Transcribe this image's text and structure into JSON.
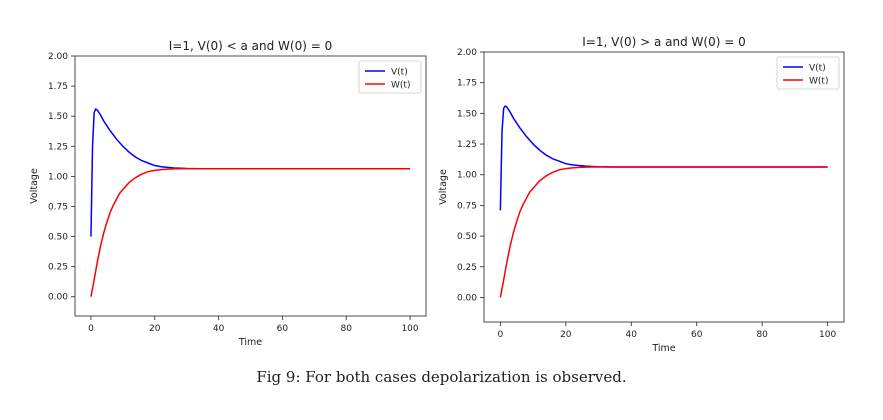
{
  "chart_data": [
    {
      "type": "line",
      "title": "I=1, V(0) < a and W(0) = 0",
      "xlabel": "Time",
      "ylabel": "Voltage",
      "xlim": [
        -5,
        105
      ],
      "ylim": [
        -0.16,
        2.0
      ],
      "xticks": [
        0,
        20,
        40,
        60,
        80,
        100
      ],
      "xtick_labels": [
        "0",
        "20",
        "40",
        "60",
        "80",
        "100"
      ],
      "yticks": [
        0.0,
        0.25,
        0.5,
        0.75,
        1.0,
        1.25,
        1.5,
        1.75,
        2.0
      ],
      "ytick_labels": [
        "0.00",
        "0.25",
        "0.50",
        "0.75",
        "1.00",
        "1.25",
        "1.50",
        "1.75",
        "2.00"
      ],
      "legend_position": "top-right",
      "grid": false,
      "series": [
        {
          "name": "V(t)",
          "color": "#0000ff",
          "x": [
            0,
            0.5,
            1,
            1.5,
            2,
            3,
            4,
            5,
            6,
            8,
            10,
            12,
            14,
            16,
            18,
            20,
            22,
            24,
            26,
            28,
            30,
            35,
            40,
            50,
            60,
            70,
            80,
            90,
            100
          ],
          "y": [
            0.5,
            1.25,
            1.53,
            1.56,
            1.55,
            1.51,
            1.46,
            1.42,
            1.38,
            1.31,
            1.25,
            1.2,
            1.16,
            1.13,
            1.11,
            1.09,
            1.08,
            1.075,
            1.07,
            1.067,
            1.065,
            1.063,
            1.063,
            1.063,
            1.063,
            1.063,
            1.063,
            1.063,
            1.063
          ]
        },
        {
          "name": "W(t)",
          "color": "#ff0000",
          "x": [
            0,
            1,
            2,
            3,
            4,
            5,
            6,
            7,
            8,
            9,
            10,
            12,
            14,
            16,
            18,
            20,
            22,
            24,
            26,
            28,
            30,
            35,
            40,
            50,
            60,
            70,
            80,
            90,
            100
          ],
          "y": [
            0.0,
            0.14,
            0.29,
            0.42,
            0.53,
            0.62,
            0.7,
            0.76,
            0.81,
            0.86,
            0.89,
            0.95,
            0.99,
            1.02,
            1.04,
            1.05,
            1.056,
            1.06,
            1.062,
            1.063,
            1.063,
            1.063,
            1.063,
            1.063,
            1.063,
            1.063,
            1.063,
            1.063,
            1.063
          ]
        }
      ]
    },
    {
      "type": "line",
      "title": "I=1, V(0) > a and W(0) = 0",
      "xlabel": "Time",
      "ylabel": "Voltage",
      "xlim": [
        -5,
        105
      ],
      "ylim": [
        -0.2,
        2.0
      ],
      "xticks": [
        0,
        20,
        40,
        60,
        80,
        100
      ],
      "xtick_labels": [
        "0",
        "20",
        "40",
        "60",
        "80",
        "100"
      ],
      "yticks": [
        0.0,
        0.25,
        0.5,
        0.75,
        1.0,
        1.25,
        1.5,
        1.75,
        2.0
      ],
      "ytick_labels": [
        "0.00",
        "0.25",
        "0.50",
        "0.75",
        "1.00",
        "1.25",
        "1.50",
        "1.75",
        "2.00"
      ],
      "legend_position": "top-right",
      "grid": false,
      "series": [
        {
          "name": "V(t)",
          "color": "#0000ff",
          "x": [
            0,
            0.5,
            1,
            1.5,
            2,
            3,
            4,
            5,
            6,
            8,
            10,
            12,
            14,
            16,
            18,
            20,
            22,
            24,
            26,
            28,
            30,
            35,
            40,
            50,
            60,
            70,
            80,
            90,
            100
          ],
          "y": [
            0.71,
            1.35,
            1.54,
            1.56,
            1.55,
            1.51,
            1.46,
            1.42,
            1.38,
            1.31,
            1.25,
            1.2,
            1.16,
            1.13,
            1.11,
            1.09,
            1.08,
            1.075,
            1.07,
            1.067,
            1.065,
            1.063,
            1.063,
            1.063,
            1.063,
            1.063,
            1.063,
            1.063,
            1.063
          ]
        },
        {
          "name": "W(t)",
          "color": "#ff0000",
          "x": [
            0,
            1,
            2,
            3,
            4,
            5,
            6,
            7,
            8,
            9,
            10,
            12,
            14,
            16,
            18,
            20,
            22,
            24,
            26,
            28,
            30,
            35,
            40,
            50,
            60,
            70,
            80,
            90,
            100
          ],
          "y": [
            0.0,
            0.14,
            0.29,
            0.42,
            0.53,
            0.62,
            0.7,
            0.76,
            0.81,
            0.86,
            0.89,
            0.95,
            0.99,
            1.02,
            1.04,
            1.05,
            1.056,
            1.06,
            1.062,
            1.063,
            1.063,
            1.063,
            1.063,
            1.063,
            1.063,
            1.063,
            1.063,
            1.063,
            1.063
          ]
        }
      ]
    }
  ],
  "caption": "Fig 9: For both cases depolarization is observed."
}
